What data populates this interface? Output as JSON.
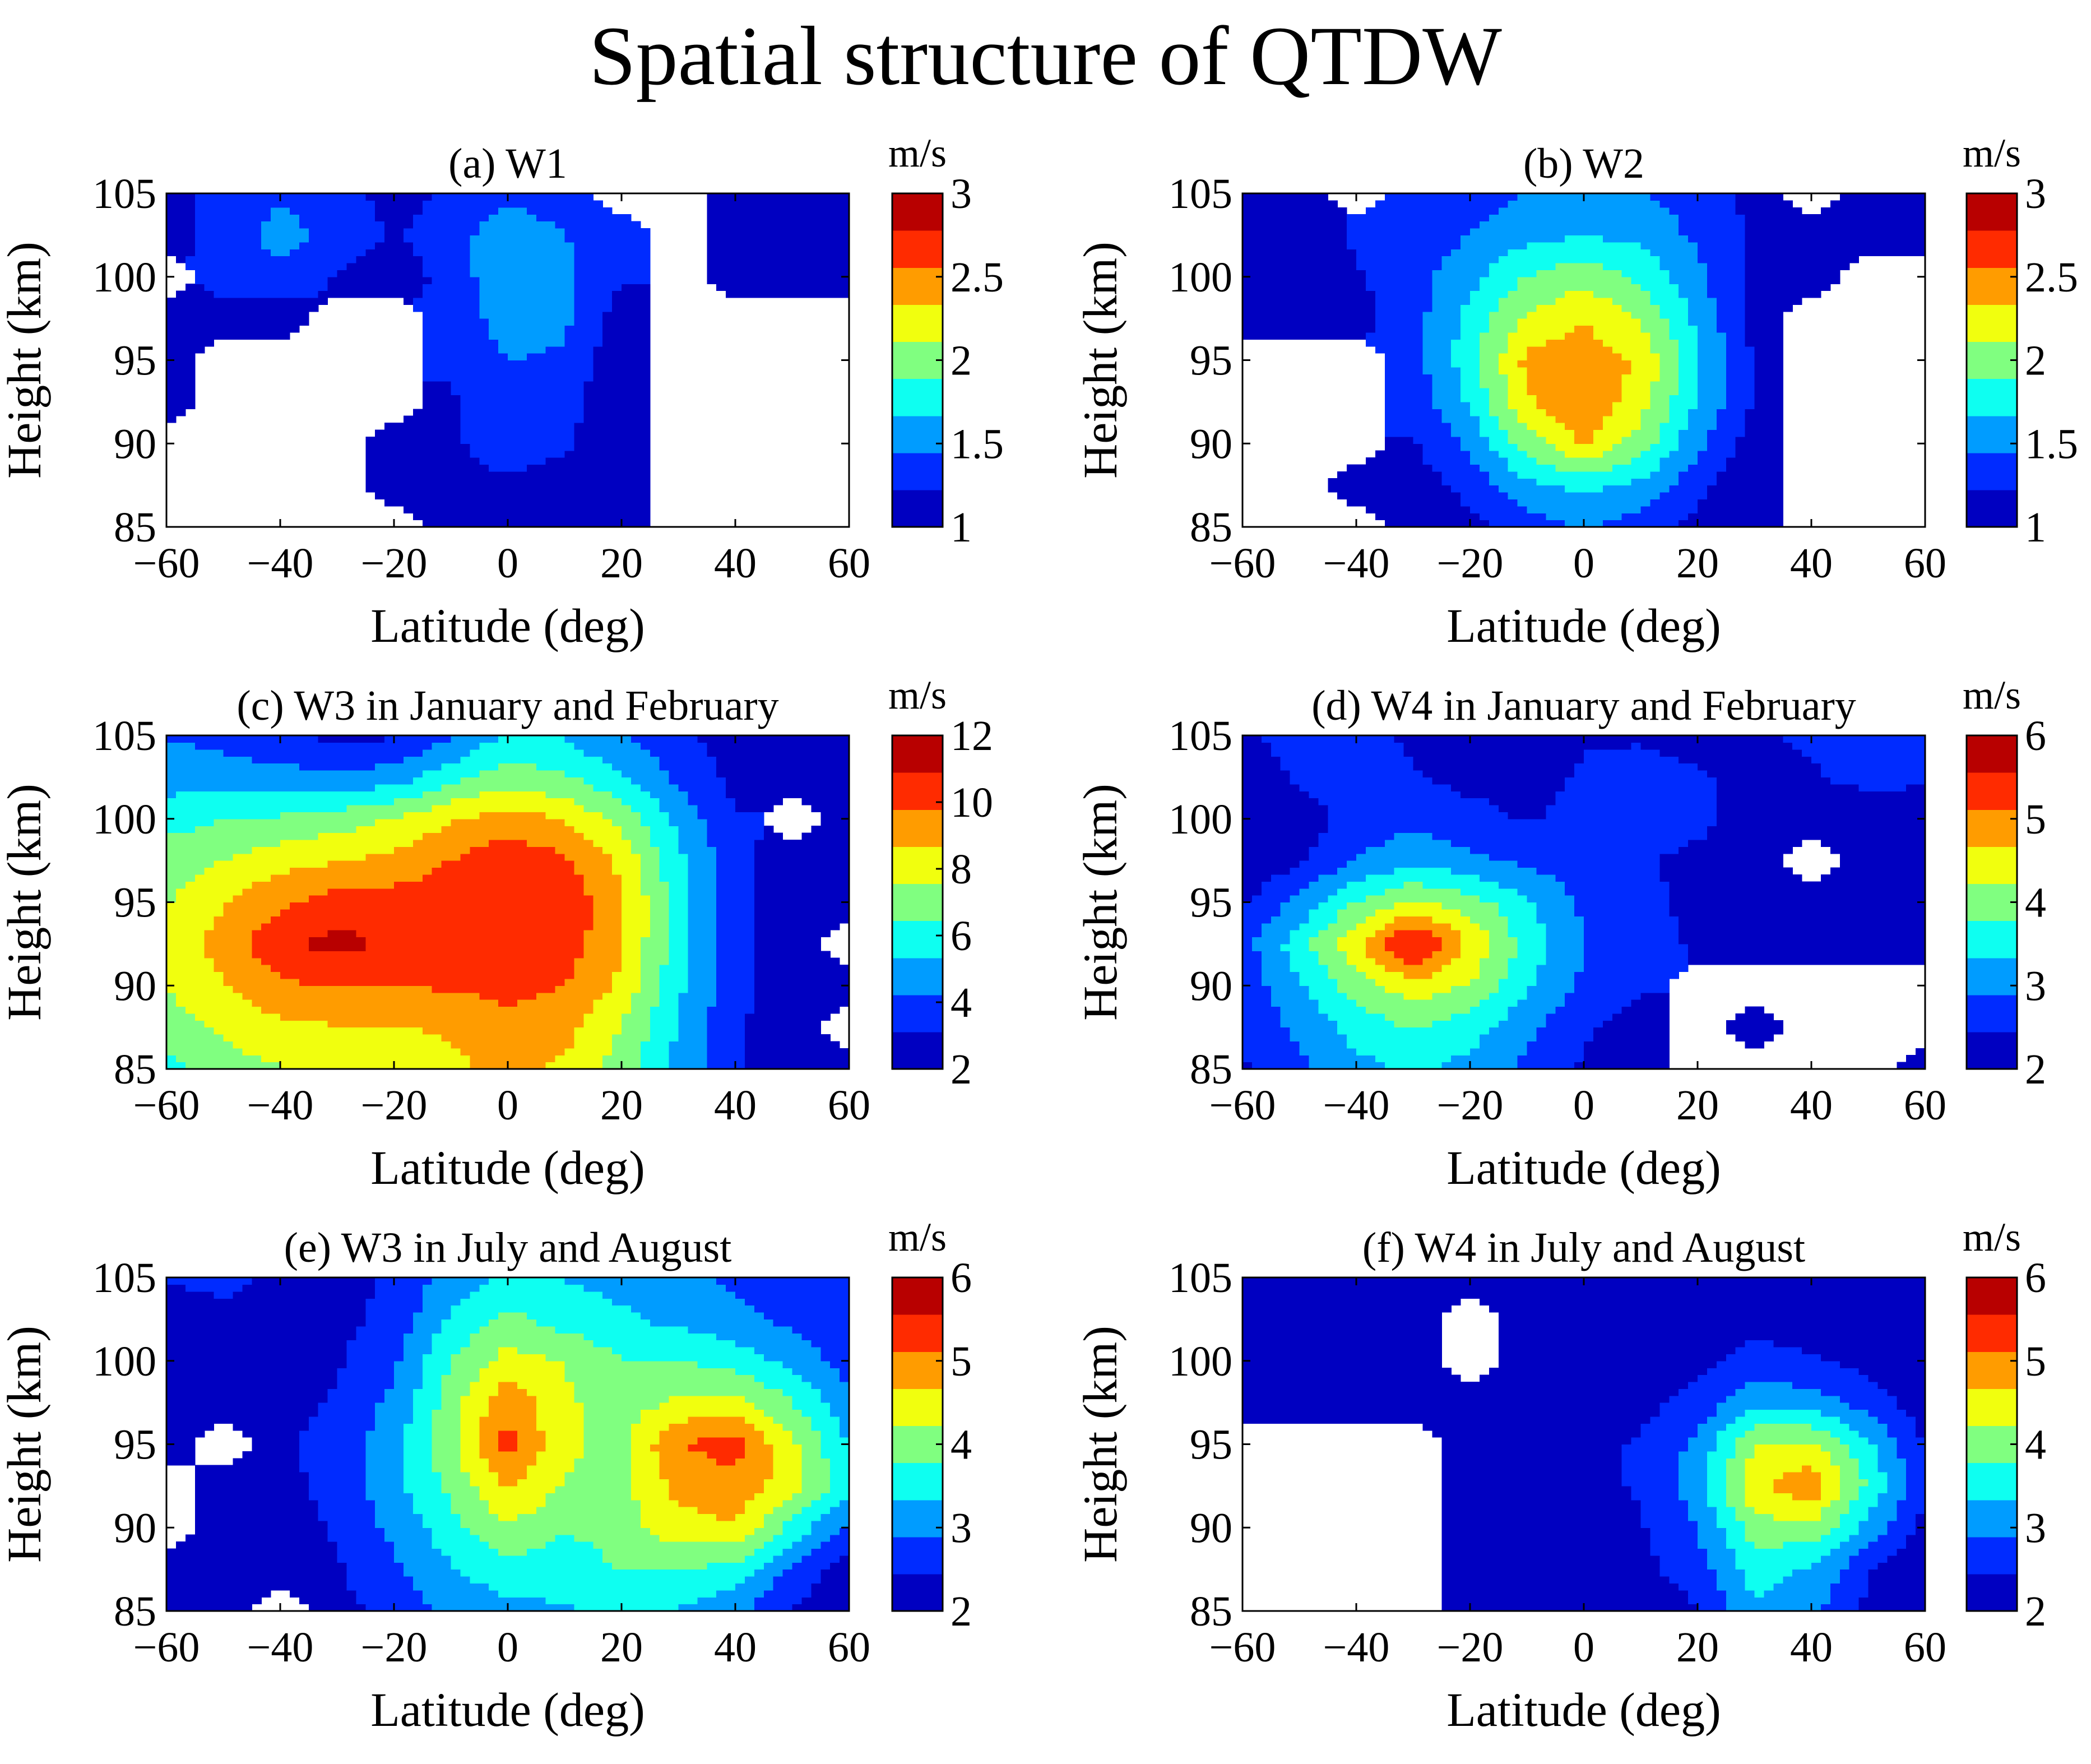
{
  "figure_title": "Spatial structure of QTDW",
  "colors": {
    "jet": [
      "#00008f",
      "#0000ff",
      "#0080ff",
      "#00ffff",
      "#80ff80",
      "#ffff00",
      "#ff8000",
      "#ff0000",
      "#800000"
    ],
    "missing": "#ffffff",
    "axis": "#000000"
  },
  "chart_data": [
    {
      "type": "heatmap",
      "id": "a",
      "title": "(a) W1",
      "xlabel": "Latitude (deg)",
      "ylabel": "Height (km)",
      "xlim": [
        -60,
        60
      ],
      "ylim": [
        85,
        105
      ],
      "xticks": [
        "−60",
        "−40",
        "−20",
        "0",
        "20",
        "40",
        "60"
      ],
      "yticks": [
        "85",
        "90",
        "95",
        "100",
        "105"
      ],
      "colorbar": {
        "label": "m/s",
        "min": 1,
        "max": 3,
        "ticks": [
          "1",
          "1.5",
          "2",
          "2.5",
          "3"
        ]
      },
      "x": [
        -60,
        -50,
        -40,
        -30,
        -20,
        -10,
        0,
        10,
        20,
        30,
        40,
        50,
        60
      ],
      "y": [
        85,
        87.5,
        90,
        92.5,
        95,
        97.5,
        100,
        102.5,
        105
      ],
      "z": [
        [
          null,
          null,
          null,
          null,
          null,
          1.05,
          1.1,
          1.05,
          1.0,
          null,
          null,
          null,
          null
        ],
        [
          null,
          null,
          null,
          null,
          1.05,
          1.15,
          1.2,
          1.15,
          1.02,
          null,
          null,
          null,
          null
        ],
        [
          null,
          null,
          null,
          null,
          1.05,
          1.2,
          1.3,
          1.25,
          1.08,
          null,
          null,
          null,
          null
        ],
        [
          1.05,
          null,
          null,
          null,
          null,
          1.2,
          1.35,
          1.3,
          1.05,
          null,
          null,
          null,
          null
        ],
        [
          1.05,
          null,
          null,
          null,
          null,
          1.25,
          1.45,
          1.4,
          1.05,
          null,
          null,
          null,
          null
        ],
        [
          1.1,
          1.2,
          1.1,
          null,
          null,
          1.3,
          1.55,
          1.5,
          1.1,
          null,
          null,
          null,
          null
        ],
        [
          null,
          1.25,
          1.35,
          1.2,
          1.1,
          1.3,
          1.65,
          1.5,
          1.25,
          null,
          1.05,
          1.05,
          1.1
        ],
        [
          1.15,
          1.3,
          1.55,
          1.35,
          1.2,
          1.35,
          1.6,
          1.45,
          1.3,
          null,
          1.02,
          1.1,
          1.2
        ],
        [
          1.15,
          1.3,
          1.4,
          1.3,
          1.15,
          1.25,
          1.4,
          1.3,
          null,
          null,
          1.1,
          1.15,
          1.1
        ]
      ]
    },
    {
      "type": "heatmap",
      "id": "b",
      "title": "(b) W2",
      "xlabel": "Latitude (deg)",
      "ylabel": "Height (km)",
      "xlim": [
        -60,
        60
      ],
      "ylim": [
        85,
        105
      ],
      "xticks": [
        "−60",
        "−40",
        "−20",
        "0",
        "20",
        "40",
        "60"
      ],
      "yticks": [
        "85",
        "90",
        "95",
        "100",
        "105"
      ],
      "colorbar": {
        "label": "m/s",
        "min": 1,
        "max": 3,
        "ticks": [
          "1",
          "1.5",
          "2",
          "2.5",
          "3"
        ]
      },
      "x": [
        -60,
        -50,
        -40,
        -30,
        -20,
        -10,
        0,
        10,
        20,
        30,
        40,
        50,
        60
      ],
      "y": [
        85,
        87.5,
        90,
        92.5,
        95,
        97.5,
        100,
        102.5,
        105
      ],
      "z": [
        [
          null,
          null,
          null,
          1.0,
          1.15,
          1.35,
          1.45,
          1.35,
          1.15,
          1.0,
          null,
          null,
          null
        ],
        [
          null,
          null,
          1.0,
          1.1,
          1.3,
          1.6,
          1.75,
          1.6,
          1.3,
          1.0,
          null,
          null,
          null
        ],
        [
          null,
          null,
          null,
          1.2,
          1.5,
          2.0,
          2.35,
          2.0,
          1.5,
          1.1,
          null,
          null,
          null
        ],
        [
          null,
          null,
          null,
          1.3,
          1.7,
          2.3,
          2.55,
          2.2,
          1.65,
          1.2,
          null,
          null,
          null
        ],
        [
          null,
          null,
          null,
          1.35,
          1.8,
          2.4,
          2.5,
          2.3,
          1.7,
          1.2,
          null,
          null,
          null
        ],
        [
          1.0,
          1.02,
          1.15,
          1.35,
          1.75,
          2.15,
          2.3,
          2.1,
          1.6,
          1.15,
          null,
          null,
          null
        ],
        [
          1.0,
          1.1,
          1.2,
          1.35,
          1.6,
          1.9,
          2.05,
          1.85,
          1.5,
          1.15,
          1.02,
          null,
          null
        ],
        [
          1.02,
          1.1,
          1.25,
          1.3,
          1.45,
          1.6,
          1.65,
          1.6,
          1.4,
          1.2,
          1.05,
          1.0,
          1.1
        ],
        [
          1.02,
          1.05,
          null,
          1.25,
          1.35,
          1.45,
          1.5,
          1.45,
          1.35,
          1.15,
          null,
          1.05,
          1.1
        ]
      ]
    },
    {
      "type": "heatmap",
      "id": "c",
      "title": "(c) W3 in January and February",
      "xlabel": "Latitude (deg)",
      "ylabel": "Height (km)",
      "xlim": [
        -60,
        60
      ],
      "ylim": [
        85,
        105
      ],
      "xticks": [
        "−60",
        "−40",
        "−20",
        "0",
        "20",
        "40",
        "60"
      ],
      "yticks": [
        "85",
        "90",
        "95",
        "100",
        "105"
      ],
      "colorbar": {
        "label": "m/s",
        "min": 2,
        "max": 12,
        "ticks": [
          "2",
          "4",
          "6",
          "8",
          "10",
          "12"
        ]
      },
      "x": [
        -60,
        -50,
        -40,
        -30,
        -20,
        -10,
        0,
        10,
        20,
        30,
        40,
        50,
        60
      ],
      "y": [
        85,
        87.5,
        90,
        92.5,
        95,
        97.5,
        100,
        102.5,
        105
      ],
      "z": [
        [
          6.0,
          7.0,
          7.5,
          7.6,
          7.8,
          8.4,
          9.0,
          8.5,
          7.0,
          5.0,
          3.2,
          2.2,
          2.0
        ],
        [
          7.0,
          7.8,
          8.4,
          8.6,
          8.6,
          8.8,
          9.3,
          9.0,
          7.5,
          5.2,
          3.3,
          2.3,
          null
        ],
        [
          7.6,
          8.6,
          9.6,
          9.8,
          9.8,
          9.9,
          10.2,
          9.8,
          8.4,
          5.6,
          3.5,
          2.3,
          2.0
        ],
        [
          7.8,
          9.2,
          10.6,
          11.3,
          10.6,
          10.4,
          10.6,
          10.4,
          8.8,
          5.8,
          3.6,
          2.3,
          null
        ],
        [
          7.5,
          8.6,
          9.6,
          10.3,
          10.3,
          10.5,
          10.8,
          10.6,
          8.9,
          5.8,
          3.6,
          2.3,
          2.0
        ],
        [
          7.0,
          7.6,
          8.2,
          8.6,
          9.0,
          9.8,
          10.5,
          10.0,
          8.4,
          5.6,
          3.5,
          2.4,
          2.1
        ],
        [
          6.0,
          6.4,
          6.6,
          7.0,
          7.6,
          8.6,
          9.2,
          8.6,
          7.2,
          5.0,
          3.2,
          null,
          2.0
        ],
        [
          4.8,
          4.8,
          4.6,
          4.4,
          4.8,
          6.0,
          7.0,
          6.6,
          5.4,
          4.0,
          2.8,
          2.2,
          2.1
        ],
        [
          4.2,
          3.8,
          3.4,
          2.8,
          3.0,
          4.0,
          5.6,
          5.2,
          4.2,
          3.4,
          2.6,
          2.3,
          2.2
        ]
      ]
    },
    {
      "type": "heatmap",
      "id": "d",
      "title": "(d) W4 in January and February",
      "xlabel": "Latitude (deg)",
      "ylabel": "Height (km)",
      "xlim": [
        -60,
        60
      ],
      "ylim": [
        85,
        105
      ],
      "xticks": [
        "−60",
        "−40",
        "−20",
        "0",
        "20",
        "40",
        "60"
      ],
      "yticks": [
        "85",
        "90",
        "95",
        "100",
        "105"
      ],
      "colorbar": {
        "label": "m/s",
        "min": 2,
        "max": 6,
        "ticks": [
          "2",
          "3",
          "4",
          "5",
          "6"
        ]
      },
      "x": [
        -60,
        -50,
        -40,
        -30,
        -20,
        -10,
        0,
        10,
        20,
        30,
        40,
        50,
        60
      ],
      "y": [
        85,
        87.5,
        90,
        92.5,
        95,
        97.5,
        100,
        102.5,
        105
      ],
      "z": [
        [
          2.4,
          2.8,
          3.2,
          3.4,
          3.2,
          2.8,
          2.4,
          2.1,
          null,
          null,
          null,
          null,
          2.1
        ],
        [
          2.5,
          3.0,
          3.5,
          3.8,
          3.5,
          3.0,
          2.5,
          2.2,
          null,
          1.8,
          null,
          null,
          null
        ],
        [
          2.6,
          3.3,
          4.0,
          4.5,
          4.2,
          3.4,
          2.8,
          2.5,
          null,
          null,
          null,
          null,
          null
        ],
        [
          2.7,
          3.6,
          4.6,
          5.7,
          4.6,
          3.6,
          2.9,
          2.6,
          2.4,
          2.2,
          2.0,
          2.0,
          2.0
        ],
        [
          2.4,
          3.0,
          3.8,
          4.3,
          4.0,
          3.4,
          2.8,
          2.6,
          2.3,
          2.1,
          1.9,
          2.0,
          2.0
        ],
        [
          2.0,
          2.4,
          2.9,
          3.2,
          3.0,
          2.8,
          2.6,
          2.5,
          2.3,
          2.0,
          null,
          2.0,
          2.1
        ],
        [
          1.9,
          2.2,
          2.6,
          2.8,
          2.6,
          2.4,
          2.6,
          2.7,
          2.6,
          2.2,
          2.0,
          2.1,
          2.2
        ],
        [
          2.2,
          2.5,
          2.8,
          2.5,
          2.3,
          2.3,
          2.5,
          2.6,
          2.5,
          2.3,
          2.4,
          2.6,
          2.5
        ],
        [
          2.4,
          2.6,
          2.8,
          2.3,
          2.1,
          2.2,
          2.4,
          2.4,
          2.3,
          2.4,
          2.5,
          2.5,
          2.6
        ]
      ]
    },
    {
      "type": "heatmap",
      "id": "e",
      "title": "(e) W3 in July and August",
      "xlabel": "Latitude (deg)",
      "ylabel": "Height (km)",
      "xlim": [
        -60,
        60
      ],
      "ylim": [
        85,
        105
      ],
      "xticks": [
        "−60",
        "−40",
        "−20",
        "0",
        "20",
        "40",
        "60"
      ],
      "yticks": [
        "85",
        "90",
        "95",
        "100",
        "105"
      ],
      "colorbar": {
        "label": "m/s",
        "min": 2,
        "max": 6,
        "ticks": [
          "2",
          "3",
          "4",
          "5",
          "6"
        ]
      },
      "x": [
        -60,
        -50,
        -40,
        -30,
        -20,
        -10,
        0,
        10,
        20,
        30,
        40,
        50,
        60
      ],
      "y": [
        85,
        87.5,
        90,
        92.5,
        95,
        97.5,
        100,
        102.5,
        105
      ],
      "z": [
        [
          2.0,
          2.2,
          null,
          2.3,
          2.6,
          3.0,
          3.2,
          3.3,
          3.4,
          3.3,
          3.0,
          2.4,
          2.0
        ],
        [
          2.1,
          2.4,
          2.2,
          2.4,
          2.8,
          3.3,
          3.6,
          3.5,
          3.8,
          3.8,
          3.6,
          2.8,
          2.2
        ],
        [
          null,
          2.3,
          2.2,
          2.5,
          3.0,
          3.6,
          4.2,
          3.8,
          4.0,
          4.5,
          4.6,
          3.6,
          2.8
        ],
        [
          null,
          2.4,
          2.3,
          2.6,
          3.2,
          3.9,
          4.7,
          4.2,
          4.1,
          4.8,
          5.0,
          4.4,
          3.5
        ],
        [
          2.3,
          null,
          2.4,
          2.6,
          3.2,
          4.1,
          5.3,
          4.3,
          4.1,
          5.1,
          5.3,
          4.3,
          3.3
        ],
        [
          2.0,
          2.1,
          2.3,
          2.5,
          3.0,
          4.0,
          5.0,
          4.3,
          4.0,
          4.3,
          4.4,
          3.8,
          3.0
        ],
        [
          1.9,
          2.0,
          2.2,
          2.4,
          2.8,
          3.8,
          4.4,
          4.2,
          3.8,
          3.8,
          3.6,
          3.2,
          2.7
        ],
        [
          2.2,
          2.4,
          2.3,
          2.3,
          2.6,
          3.4,
          3.9,
          3.6,
          3.4,
          3.2,
          3.0,
          2.8,
          2.5
        ],
        [
          2.5,
          2.5,
          2.4,
          2.3,
          2.5,
          3.1,
          3.4,
          3.3,
          3.2,
          3.0,
          2.8,
          2.7,
          2.6
        ]
      ]
    },
    {
      "type": "heatmap",
      "id": "f",
      "title": "(f) W4 in July and August",
      "xlabel": "Latitude (deg)",
      "ylabel": "Height (km)",
      "xlim": [
        -60,
        60
      ],
      "ylim": [
        85,
        105
      ],
      "xticks": [
        "−60",
        "−40",
        "−20",
        "0",
        "20",
        "40",
        "60"
      ],
      "yticks": [
        "85",
        "90",
        "95",
        "100",
        "105"
      ],
      "colorbar": {
        "label": "m/s",
        "min": 2,
        "max": 6,
        "ticks": [
          "2",
          "3",
          "4",
          "5",
          "6"
        ]
      },
      "x": [
        -60,
        -50,
        -40,
        -30,
        -20,
        -10,
        0,
        10,
        20,
        30,
        40,
        50,
        60
      ],
      "y": [
        85,
        87.5,
        90,
        92.5,
        95,
        97.5,
        100,
        102.5,
        105
      ],
      "z": [
        [
          null,
          null,
          null,
          null,
          1.8,
          1.9,
          2.0,
          2.1,
          2.4,
          3.3,
          3.0,
          2.3,
          1.9
        ],
        [
          null,
          null,
          null,
          null,
          1.9,
          2.0,
          2.1,
          2.3,
          2.7,
          3.5,
          3.3,
          2.5,
          2.0
        ],
        [
          null,
          null,
          null,
          null,
          1.9,
          2.1,
          2.2,
          2.4,
          2.9,
          4.0,
          4.1,
          3.2,
          2.3
        ],
        [
          null,
          null,
          null,
          null,
          1.9,
          2.1,
          2.3,
          2.5,
          3.1,
          4.6,
          5.0,
          3.7,
          2.5
        ],
        [
          null,
          null,
          null,
          null,
          2.0,
          2.2,
          2.3,
          2.5,
          3.0,
          4.2,
          4.3,
          3.4,
          2.4
        ],
        [
          2.0,
          1.9,
          1.9,
          2.1,
          2.0,
          2.1,
          2.2,
          2.3,
          2.6,
          3.2,
          3.1,
          2.7,
          2.2
        ],
        [
          2.2,
          1.9,
          1.8,
          2.0,
          null,
          2.0,
          2.1,
          2.2,
          2.3,
          2.6,
          2.5,
          2.3,
          2.1
        ],
        [
          2.3,
          1.9,
          1.8,
          2.0,
          null,
          2.0,
          2.1,
          2.2,
          2.2,
          2.3,
          2.2,
          2.2,
          2.1
        ],
        [
          2.4,
          2.1,
          2.0,
          2.1,
          2.0,
          2.1,
          2.2,
          2.2,
          2.2,
          2.2,
          2.2,
          2.3,
          2.2
        ]
      ]
    }
  ]
}
